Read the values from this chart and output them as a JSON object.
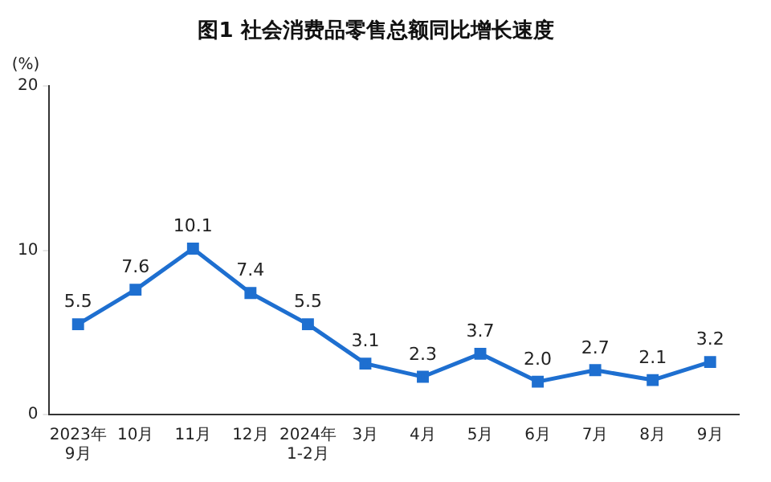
{
  "chart_data": {
    "type": "line",
    "title": "图1 社会消费品零售总额同比增长速度",
    "ylabel": "(%)",
    "categories": [
      "2023年\n9月",
      "10月",
      "11月",
      "12月",
      "2024年\n1-2月",
      "3月",
      "4月",
      "5月",
      "6月",
      "7月",
      "8月",
      "9月"
    ],
    "series": [
      {
        "color": "#1e6fd0",
        "values": [
          5.5,
          7.6,
          10.1,
          7.4,
          5.5,
          3.1,
          2.3,
          3.7,
          2.0,
          2.7,
          2.1,
          3.2
        ],
        "value_labels": [
          "5.5",
          "7.6",
          "10.1",
          "7.4",
          "5.5",
          "3.1",
          "2.3",
          "3.7",
          "2.0",
          "2.7",
          "2.1",
          "3.2"
        ]
      }
    ],
    "ylim": [
      0,
      20
    ],
    "yticks": [
      0,
      10,
      20
    ],
    "grid": false,
    "legend": false,
    "marker": "square",
    "line_style": "solid"
  }
}
